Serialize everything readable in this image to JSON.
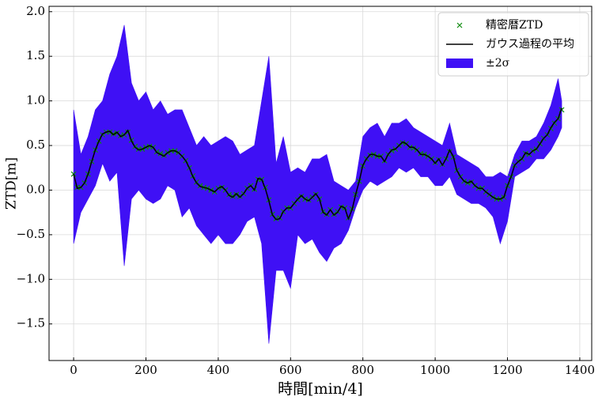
{
  "chart_data": {
    "type": "line",
    "xlabel": "時間[min/4]",
    "ylabel": "ZTD[m]",
    "xlim": [
      -68,
      1433
    ],
    "ylim": [
      -1.91,
      2.06
    ],
    "xticks": [
      0,
      200,
      400,
      600,
      800,
      1000,
      1200,
      1400
    ],
    "yticks": [
      {
        "value": -1.5,
        "label": "−1.5"
      },
      {
        "value": -1.0,
        "label": "−1.0"
      },
      {
        "value": -0.5,
        "label": "−0.5"
      },
      {
        "value": 0,
        "label": "0.0"
      },
      0.5,
      {
        "value": 1.0,
        "label": "1.0"
      },
      1.5,
      {
        "value": 2.0,
        "label": "2.0"
      }
    ],
    "grid": true,
    "legend": "upper right",
    "x": [
      0,
      10,
      20,
      30,
      40,
      50,
      60,
      70,
      80,
      90,
      100,
      110,
      120,
      130,
      140,
      150,
      160,
      170,
      180,
      190,
      200,
      210,
      220,
      230,
      240,
      250,
      260,
      270,
      280,
      290,
      300,
      310,
      320,
      330,
      340,
      350,
      360,
      370,
      380,
      390,
      400,
      410,
      420,
      430,
      440,
      450,
      460,
      470,
      480,
      490,
      500,
      510,
      520,
      530,
      540,
      550,
      560,
      570,
      580,
      590,
      600,
      610,
      620,
      630,
      640,
      650,
      660,
      670,
      680,
      690,
      700,
      710,
      720,
      730,
      740,
      750,
      760,
      770,
      780,
      790,
      800,
      810,
      820,
      830,
      840,
      850,
      860,
      870,
      880,
      890,
      900,
      910,
      920,
      930,
      940,
      950,
      960,
      970,
      980,
      990,
      1000,
      1010,
      1020,
      1030,
      1040,
      1050,
      1060,
      1070,
      1080,
      1090,
      1100,
      1110,
      1120,
      1130,
      1140,
      1150,
      1160,
      1170,
      1180,
      1190,
      1200,
      1210,
      1220,
      1230,
      1240,
      1250,
      1260,
      1270,
      1280,
      1290,
      1300,
      1310,
      1320,
      1330,
      1340,
      1350
    ],
    "series": [
      {
        "name": "精密暦ZTD",
        "kind": "scatter",
        "color": "#0a8a0a",
        "values": [
          0.18,
          0.03,
          0.03,
          0.08,
          0.18,
          0.32,
          0.45,
          0.55,
          0.62,
          0.65,
          0.65,
          0.63,
          0.64,
          0.61,
          0.62,
          0.65,
          0.56,
          0.49,
          0.46,
          0.46,
          0.48,
          0.49,
          0.48,
          0.43,
          0.41,
          0.39,
          0.42,
          0.44,
          0.44,
          0.42,
          0.38,
          0.33,
          0.25,
          0.16,
          0.09,
          0.05,
          0.03,
          0.02,
          0.0,
          -0.02,
          0.02,
          0.03,
          0.0,
          -0.05,
          -0.07,
          -0.05,
          -0.07,
          -0.04,
          0.02,
          0.05,
          0.01,
          0.12,
          0.12,
          0.03,
          -0.11,
          -0.27,
          -0.32,
          -0.31,
          -0.24,
          -0.2,
          -0.2,
          -0.15,
          -0.11,
          -0.07,
          -0.1,
          -0.11,
          -0.08,
          -0.05,
          -0.1,
          -0.24,
          -0.27,
          -0.22,
          -0.27,
          -0.24,
          -0.19,
          -0.2,
          -0.31,
          -0.21,
          -0.05,
          0.1,
          0.27,
          0.35,
          0.39,
          0.4,
          0.38,
          0.38,
          0.33,
          0.4,
          0.44,
          0.46,
          0.5,
          0.53,
          0.52,
          0.48,
          0.47,
          0.45,
          0.41,
          0.4,
          0.38,
          0.35,
          0.31,
          0.34,
          0.29,
          0.35,
          0.43,
          0.37,
          0.22,
          0.15,
          0.1,
          0.08,
          0.09,
          0.05,
          0.02,
          0.02,
          -0.02,
          -0.05,
          -0.08,
          -0.1,
          -0.1,
          -0.08,
          0.05,
          0.15,
          0.28,
          0.32,
          0.35,
          0.41,
          0.4,
          0.44,
          0.46,
          0.52,
          0.58,
          0.62,
          0.69,
          0.75,
          0.8,
          0.9
        ]
      },
      {
        "name": "ガウス過程の平均",
        "kind": "line",
        "color": "#000000",
        "values": [
          0.18,
          0.02,
          0.03,
          0.08,
          0.18,
          0.32,
          0.45,
          0.55,
          0.63,
          0.65,
          0.66,
          0.62,
          0.65,
          0.6,
          0.62,
          0.67,
          0.55,
          0.48,
          0.45,
          0.46,
          0.48,
          0.5,
          0.48,
          0.42,
          0.4,
          0.38,
          0.42,
          0.44,
          0.44,
          0.42,
          0.38,
          0.33,
          0.25,
          0.15,
          0.08,
          0.04,
          0.03,
          0.02,
          0.0,
          -0.02,
          0.02,
          0.04,
          0.0,
          -0.06,
          -0.08,
          -0.04,
          -0.08,
          -0.04,
          0.02,
          0.05,
          0.0,
          0.13,
          0.12,
          0.02,
          -0.12,
          -0.28,
          -0.33,
          -0.32,
          -0.24,
          -0.2,
          -0.2,
          -0.15,
          -0.1,
          -0.06,
          -0.1,
          -0.12,
          -0.08,
          -0.04,
          -0.1,
          -0.25,
          -0.28,
          -0.22,
          -0.28,
          -0.25,
          -0.18,
          -0.2,
          -0.32,
          -0.22,
          -0.05,
          0.1,
          0.28,
          0.35,
          0.4,
          0.4,
          0.38,
          0.38,
          0.32,
          0.4,
          0.45,
          0.46,
          0.5,
          0.54,
          0.52,
          0.48,
          0.48,
          0.45,
          0.4,
          0.4,
          0.38,
          0.35,
          0.3,
          0.35,
          0.28,
          0.35,
          0.45,
          0.38,
          0.22,
          0.15,
          0.1,
          0.08,
          0.1,
          0.05,
          0.02,
          0.02,
          -0.02,
          -0.05,
          -0.08,
          -0.1,
          -0.1,
          -0.08,
          0.05,
          0.15,
          0.28,
          0.32,
          0.35,
          0.42,
          0.4,
          0.44,
          0.46,
          0.52,
          0.58,
          0.62,
          0.7,
          0.76,
          0.8,
          0.92
        ]
      }
    ],
    "band": {
      "name": "±2σ",
      "color": "#3f10f5",
      "x": [
        0,
        20,
        40,
        60,
        80,
        100,
        120,
        140,
        160,
        180,
        200,
        220,
        240,
        260,
        280,
        300,
        320,
        340,
        360,
        380,
        400,
        420,
        440,
        460,
        480,
        500,
        520,
        540,
        560,
        580,
        600,
        620,
        640,
        660,
        680,
        700,
        720,
        740,
        760,
        780,
        800,
        820,
        840,
        860,
        880,
        900,
        920,
        940,
        960,
        980,
        1000,
        1020,
        1040,
        1060,
        1080,
        1100,
        1120,
        1140,
        1160,
        1180,
        1200,
        1220,
        1240,
        1260,
        1280,
        1300,
        1320,
        1340,
        1350
      ],
      "upper": [
        0.9,
        0.4,
        0.6,
        0.9,
        1.0,
        1.3,
        1.5,
        1.85,
        1.2,
        1.0,
        1.1,
        0.9,
        1.0,
        0.85,
        0.9,
        0.9,
        0.7,
        0.5,
        0.6,
        0.5,
        0.55,
        0.6,
        0.55,
        0.4,
        0.45,
        0.5,
        1.0,
        1.5,
        0.3,
        0.6,
        0.2,
        0.25,
        0.2,
        0.35,
        0.35,
        0.4,
        0.1,
        0.05,
        0.0,
        0.1,
        0.6,
        0.7,
        0.75,
        0.6,
        0.75,
        0.75,
        0.8,
        0.7,
        0.65,
        0.6,
        0.55,
        0.5,
        0.75,
        0.4,
        0.35,
        0.3,
        0.25,
        0.15,
        0.15,
        0.2,
        0.15,
        0.4,
        0.55,
        0.55,
        0.6,
        0.75,
        0.95,
        1.25,
        1.0
      ],
      "lower": [
        -0.6,
        -0.25,
        -0.1,
        0.05,
        0.3,
        0.1,
        0.2,
        -0.85,
        -0.1,
        0.0,
        -0.1,
        -0.15,
        -0.1,
        0.05,
        0.0,
        -0.3,
        -0.2,
        -0.4,
        -0.5,
        -0.6,
        -0.5,
        -0.6,
        -0.6,
        -0.5,
        -0.35,
        -0.3,
        -0.6,
        -1.72,
        -0.9,
        -0.9,
        -1.1,
        -0.5,
        -0.6,
        -0.55,
        -0.7,
        -0.8,
        -0.65,
        -0.6,
        -0.45,
        -0.2,
        0.0,
        0.1,
        0.05,
        0.1,
        0.15,
        0.25,
        0.2,
        0.25,
        0.15,
        0.15,
        0.05,
        0.05,
        0.15,
        -0.05,
        -0.1,
        -0.15,
        -0.15,
        -0.2,
        -0.3,
        -0.6,
        -0.35,
        0.15,
        0.2,
        0.25,
        0.35,
        0.35,
        0.45,
        0.6,
        0.7
      ]
    }
  }
}
